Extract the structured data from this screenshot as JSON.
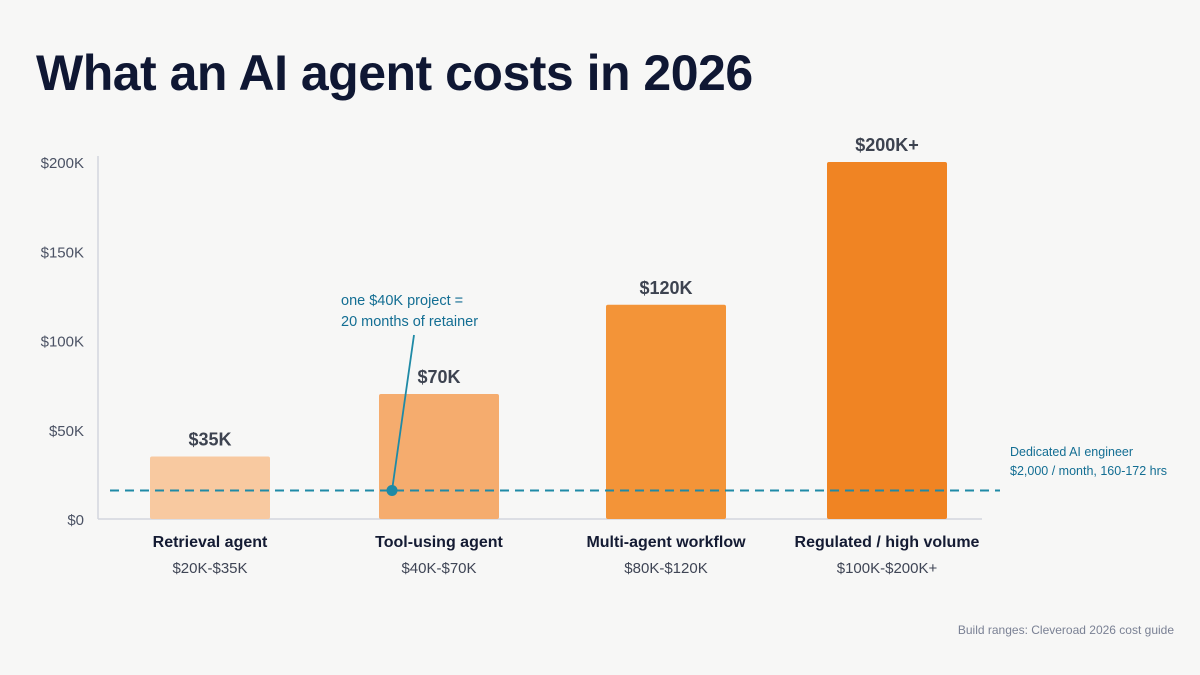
{
  "title": "What an AI agent costs in 2026",
  "footer": "Build ranges: Cleveroad 2026 cost guide",
  "colors": {
    "axis_text": "#4b5264",
    "value_label": "#3d4350",
    "category_label": "#141b33",
    "range_label": "#3f4555",
    "reference_line": "#1f8aa6",
    "annotation_text": "#136e93",
    "axis_line": "#d3d6de"
  },
  "chart_data": {
    "type": "bar",
    "ylim": [
      0,
      200000
    ],
    "yticks": [
      0,
      50000,
      100000,
      150000,
      200000
    ],
    "ytick_labels": [
      "$0",
      "$50K",
      "$100K",
      "$150K",
      "$200K"
    ],
    "categories": [
      "Retrieval agent",
      "Tool-using agent",
      "Multi-agent workflow",
      "Regulated / high volume"
    ],
    "ranges": [
      "$20K-$35K",
      "$40K-$70K",
      "$80K-$120K",
      "$100K-$200K+"
    ],
    "values": [
      35000,
      70000,
      120000,
      200000
    ],
    "value_labels": [
      "$35K",
      "$70K",
      "$120K",
      "$200K+"
    ],
    "bar_colors": [
      "#f8c9a0",
      "#f5ac6e",
      "#f39438",
      "#f08423"
    ],
    "reference_line": {
      "value": 16000,
      "label_lines": [
        "Dedicated AI engineer",
        "$2,000 / month, 160-172 hrs"
      ]
    },
    "annotation": {
      "text_lines": [
        "one $40K project =",
        "20 months of retainer"
      ],
      "category_index": 1,
      "value": 16000
    }
  }
}
